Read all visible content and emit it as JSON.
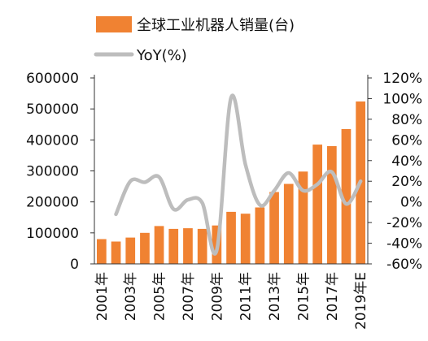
{
  "chart_data": {
    "type": "bar+line",
    "title": "",
    "legend": {
      "position": "top",
      "items": [
        {
          "label": "全球工业机器人销量(台)",
          "kind": "bar",
          "color": "#F08232"
        },
        {
          "label": "YoY(%)",
          "kind": "line",
          "color": "#BDBDBD"
        }
      ]
    },
    "categories": [
      "2001年",
      "2002年",
      "2003年",
      "2004年",
      "2005年",
      "2006年",
      "2007年",
      "2008年",
      "2009年",
      "2010年",
      "2011年",
      "2012年",
      "2013年",
      "2014年",
      "2015年",
      "2016年",
      "2017年",
      "2018年",
      "2019年E"
    ],
    "x_tick_labels": [
      "2001年",
      "",
      "2003年",
      "",
      "2005年",
      "",
      "2007年",
      "",
      "2009年",
      "",
      "2011年",
      "",
      "2013年",
      "",
      "2015年",
      "",
      "2017年",
      "",
      "2019年E"
    ],
    "series": [
      {
        "name": "全球工业机器人销量(台)",
        "axis": "left",
        "type": "bar",
        "color": "#F08232",
        "values": [
          80000,
          72000,
          85000,
          100000,
          122000,
          113000,
          115000,
          113000,
          124000,
          168000,
          162000,
          182000,
          232000,
          258000,
          298000,
          385000,
          380000,
          435000,
          524000
        ]
      },
      {
        "name": "YoY(%)",
        "axis": "right",
        "type": "line",
        "color": "#BDBDBD",
        "values": [
          null,
          -12,
          20,
          19,
          24,
          -7,
          2,
          -1,
          -47,
          101,
          36,
          -3,
          11,
          28,
          11,
          17,
          29,
          -2,
          20
        ]
      }
    ],
    "y_left": {
      "min": 0,
      "max": 600000,
      "ticks": [
        "0",
        "100000",
        "200000",
        "300000",
        "400000",
        "500000",
        "600000"
      ]
    },
    "y_right": {
      "min": -60,
      "max": 120,
      "ticks": [
        "-60%",
        "-40%",
        "-20%",
        "0%",
        "20%",
        "40%",
        "60%",
        "80%",
        "100%",
        "120%"
      ]
    },
    "grid": false
  },
  "colors": {
    "bar": "#F08232",
    "line": "#BDBDBD",
    "axis": "#333333"
  }
}
